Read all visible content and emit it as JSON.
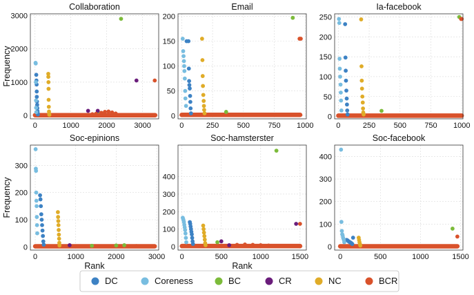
{
  "series_meta": [
    {
      "key": "DC",
      "name": "DC",
      "color": "#3d82c4"
    },
    {
      "key": "Coreness",
      "name": "Coreness",
      "color": "#78bde0"
    },
    {
      "key": "BC",
      "name": "BC",
      "color": "#7cbb3a"
    },
    {
      "key": "CR",
      "name": "CR",
      "color": "#6a1d7b"
    },
    {
      "key": "NC",
      "name": "NC",
      "color": "#e0ac28"
    },
    {
      "key": "BCR",
      "name": "BCR",
      "color": "#d9522b"
    }
  ],
  "chart_data": [
    {
      "type": "scatter",
      "title": "Collaboration",
      "xlabel": "",
      "ylabel": "Frequency",
      "xlim": [
        -130,
        3450
      ],
      "ylim": [
        -100,
        3050
      ],
      "xticks": [
        0,
        1000,
        2000,
        3000
      ],
      "yticks": [
        0,
        1000,
        2000,
        3000
      ],
      "grid": true,
      "series": {
        "DC": {
          "x": [
            35,
            40,
            45,
            48,
            50,
            55,
            60,
            65,
            70,
            75,
            80
          ],
          "y": [
            1220,
            1050,
            930,
            720,
            560,
            420,
            320,
            220,
            130,
            70,
            30
          ]
        },
        "Coreness": {
          "x": [
            15,
            20,
            25,
            28,
            30,
            35
          ],
          "y": [
            1580,
            1560,
            1000,
            450,
            230,
            100
          ]
        },
        "BC": {
          "x": [
            2400,
            1750
          ],
          "y": [
            2900,
            120
          ]
        },
        "CR": {
          "x": [
            2830,
            1480,
            1750
          ],
          "y": [
            1050,
            140,
            140
          ]
        },
        "NC": {
          "x": [
            370,
            372,
            375,
            378,
            380,
            385,
            390,
            395,
            400
          ],
          "y": [
            1250,
            1160,
            1000,
            800,
            470,
            260,
            120,
            60,
            20
          ]
        },
        "BCR": {
          "x": [
            3340,
            1850,
            1950,
            2050,
            2150,
            2250,
            1600,
            1700
          ],
          "y": [
            1050,
            80,
            110,
            120,
            90,
            60,
            40,
            50
          ]
        }
      },
      "baseline": {
        "x": [
          0,
          3350
        ],
        "y": 10
      }
    },
    {
      "type": "scatter",
      "title": "Email",
      "xlabel": "",
      "ylabel": "",
      "xlim": [
        -30,
        1010
      ],
      "ylim": [
        -6,
        205
      ],
      "xticks": [
        0,
        250,
        500,
        750,
        1000
      ],
      "yticks": [
        0,
        50,
        100,
        150,
        200
      ],
      "grid": true,
      "series": {
        "DC": {
          "x": [
            40,
            55,
            58,
            60,
            62,
            65,
            68,
            70,
            72,
            75
          ],
          "y": [
            150,
            150,
            95,
            70,
            62,
            55,
            40,
            28,
            15,
            5
          ]
        },
        "Coreness": {
          "x": [
            8,
            12,
            15,
            18,
            20,
            22,
            25,
            28,
            30,
            35
          ],
          "y": [
            155,
            130,
            120,
            110,
            100,
            90,
            75,
            50,
            35,
            20
          ]
        },
        "BC": {
          "x": [
            900,
            360
          ],
          "y": [
            197,
            8
          ]
        },
        "CR": {
          "x": [],
          "y": []
        },
        "NC": {
          "x": [
            165,
            168,
            170,
            172,
            175,
            178,
            180,
            182,
            185
          ],
          "y": [
            155,
            112,
            80,
            60,
            42,
            30,
            20,
            12,
            5
          ]
        },
        "BCR": {
          "x": [
            955,
            965
          ],
          "y": [
            155,
            155
          ]
        }
      },
      "baseline": {
        "x": [
          0,
          960
        ],
        "y": 2
      }
    },
    {
      "type": "scatter",
      "title": "Ia-facebook",
      "xlabel": "",
      "ylabel": "",
      "xlim": [
        -30,
        1010
      ],
      "ylim": [
        -6,
        258
      ],
      "xticks": [
        0,
        250,
        500,
        750,
        1000
      ],
      "yticks": [
        0,
        50,
        100,
        150,
        200,
        250
      ],
      "grid": true,
      "series": {
        "DC": {
          "x": [
            55,
            58,
            60,
            62,
            65,
            68,
            70,
            72,
            75
          ],
          "y": [
            232,
            148,
            115,
            90,
            65,
            45,
            30,
            15,
            5
          ]
        },
        "Coreness": {
          "x": [
            5,
            8,
            10,
            12,
            15,
            18,
            20,
            22,
            25
          ],
          "y": [
            245,
            235,
            145,
            120,
            100,
            80,
            60,
            40,
            15
          ]
        },
        "BC": {
          "x": [
            980,
            350
          ],
          "y": [
            250,
            14
          ]
        },
        "CR": {
          "x": [],
          "y": []
        },
        "NC": {
          "x": [
            185,
            188,
            190,
            192,
            195,
            198,
            200,
            202,
            205
          ],
          "y": [
            244,
            126,
            90,
            70,
            50,
            35,
            20,
            10,
            5
          ]
        },
        "BCR": {
          "x": [
            995,
            1000
          ],
          "y": [
            245,
            245
          ]
        }
      },
      "baseline": {
        "x": [
          0,
          1000
        ],
        "y": 2
      }
    },
    {
      "type": "scatter",
      "title": "Soc-epinions",
      "xlabel": "Rank",
      "ylabel": "Frequency",
      "xlim": [
        -120,
        3050
      ],
      "ylim": [
        -12,
        375
      ],
      "xticks": [
        0,
        1000,
        2000,
        3000
      ],
      "yticks": [
        0,
        100,
        200,
        300
      ],
      "grid": true,
      "series": {
        "DC": {
          "x": [
            120,
            130,
            140,
            150,
            160,
            170,
            180,
            190,
            200,
            210
          ],
          "y": [
            190,
            175,
            150,
            120,
            100,
            80,
            60,
            40,
            20,
            8
          ]
        },
        "Coreness": {
          "x": [
            10,
            15,
            20,
            25,
            30,
            35,
            40,
            45,
            50
          ],
          "y": [
            360,
            288,
            280,
            200,
            170,
            150,
            110,
            80,
            50
          ]
        },
        "BC": {
          "x": [
            1400,
            2000,
            2200
          ],
          "y": [
            4,
            5,
            6
          ]
        },
        "CR": {
          "x": [
            850
          ],
          "y": [
            6
          ]
        },
        "NC": {
          "x": [
            560,
            565,
            570,
            575,
            580,
            585,
            590,
            595,
            600
          ],
          "y": [
            128,
            110,
            95,
            80,
            62,
            45,
            30,
            15,
            5
          ]
        },
        "BCR": {
          "x": [
            2500
          ],
          "y": [
            3
          ]
        }
      },
      "baseline": {
        "x": [
          0,
          2950
        ],
        "y": 2
      }
    },
    {
      "type": "scatter",
      "title": "Soc-hamsterster",
      "xlabel": "Rank",
      "ylabel": "",
      "xlim": [
        -50,
        1580
      ],
      "ylim": [
        -20,
        580
      ],
      "xticks": [
        0,
        500,
        1000,
        1500
      ],
      "yticks": [
        0,
        100,
        200,
        300,
        400
      ],
      "grid": true,
      "series": {
        "DC": {
          "x": [
            100,
            105,
            110,
            115,
            120,
            125,
            130,
            135,
            140
          ],
          "y": [
            140,
            130,
            115,
            100,
            85,
            70,
            50,
            30,
            15
          ]
        },
        "Coreness": {
          "x": [
            10,
            15,
            20,
            25,
            30,
            35,
            40,
            45,
            50,
            55
          ],
          "y": [
            165,
            158,
            150,
            140,
            125,
            110,
            95,
            75,
            50,
            25
          ]
        },
        "BC": {
          "x": [
            1200,
            450
          ],
          "y": [
            548,
            25
          ]
        },
        "CR": {
          "x": [
            1450,
            500,
            600
          ],
          "y": [
            130,
            30,
            8
          ]
        },
        "NC": {
          "x": [
            270,
            275,
            280,
            285,
            290,
            295,
            300
          ],
          "y": [
            120,
            100,
            80,
            60,
            40,
            20,
            8
          ]
        },
        "BCR": {
          "x": [
            1500,
            700,
            800,
            900,
            1000,
            1100
          ],
          "y": [
            130,
            10,
            12,
            10,
            8,
            6
          ]
        }
      },
      "baseline": {
        "x": [
          0,
          1500
        ],
        "y": 3
      }
    },
    {
      "type": "scatter",
      "title": "Soc-facebook",
      "xlabel": "",
      "ylabel": "",
      "xlim": [
        -70,
        1530
      ],
      "ylim": [
        -15,
        450
      ],
      "xticks": [
        0,
        500,
        1000,
        1500
      ],
      "yticks": [
        0,
        100,
        200,
        300,
        400
      ],
      "grid": true,
      "series": {
        "DC": {
          "x": [
            80,
            90,
            100,
            110,
            120,
            130,
            140,
            150,
            160
          ],
          "y": [
            30,
            28,
            25,
            22,
            20,
            18,
            15,
            12,
            40
          ]
        },
        "Coreness": {
          "x": [
            10,
            15,
            20,
            25,
            30,
            35,
            40,
            45,
            50
          ],
          "y": [
            430,
            110,
            70,
            55,
            50,
            40,
            35,
            30,
            20
          ]
        },
        "BC": {
          "x": [
            1400
          ],
          "y": [
            80
          ]
        },
        "CR": {
          "x": [],
          "y": []
        },
        "NC": {
          "x": [
            230,
            235,
            240,
            245,
            250
          ],
          "y": [
            40,
            30,
            20,
            12,
            5
          ]
        },
        "BCR": {
          "x": [
            1460
          ],
          "y": [
            45
          ]
        }
      },
      "baseline": {
        "x": [
          0,
          1460
        ],
        "y": 2
      }
    }
  ]
}
